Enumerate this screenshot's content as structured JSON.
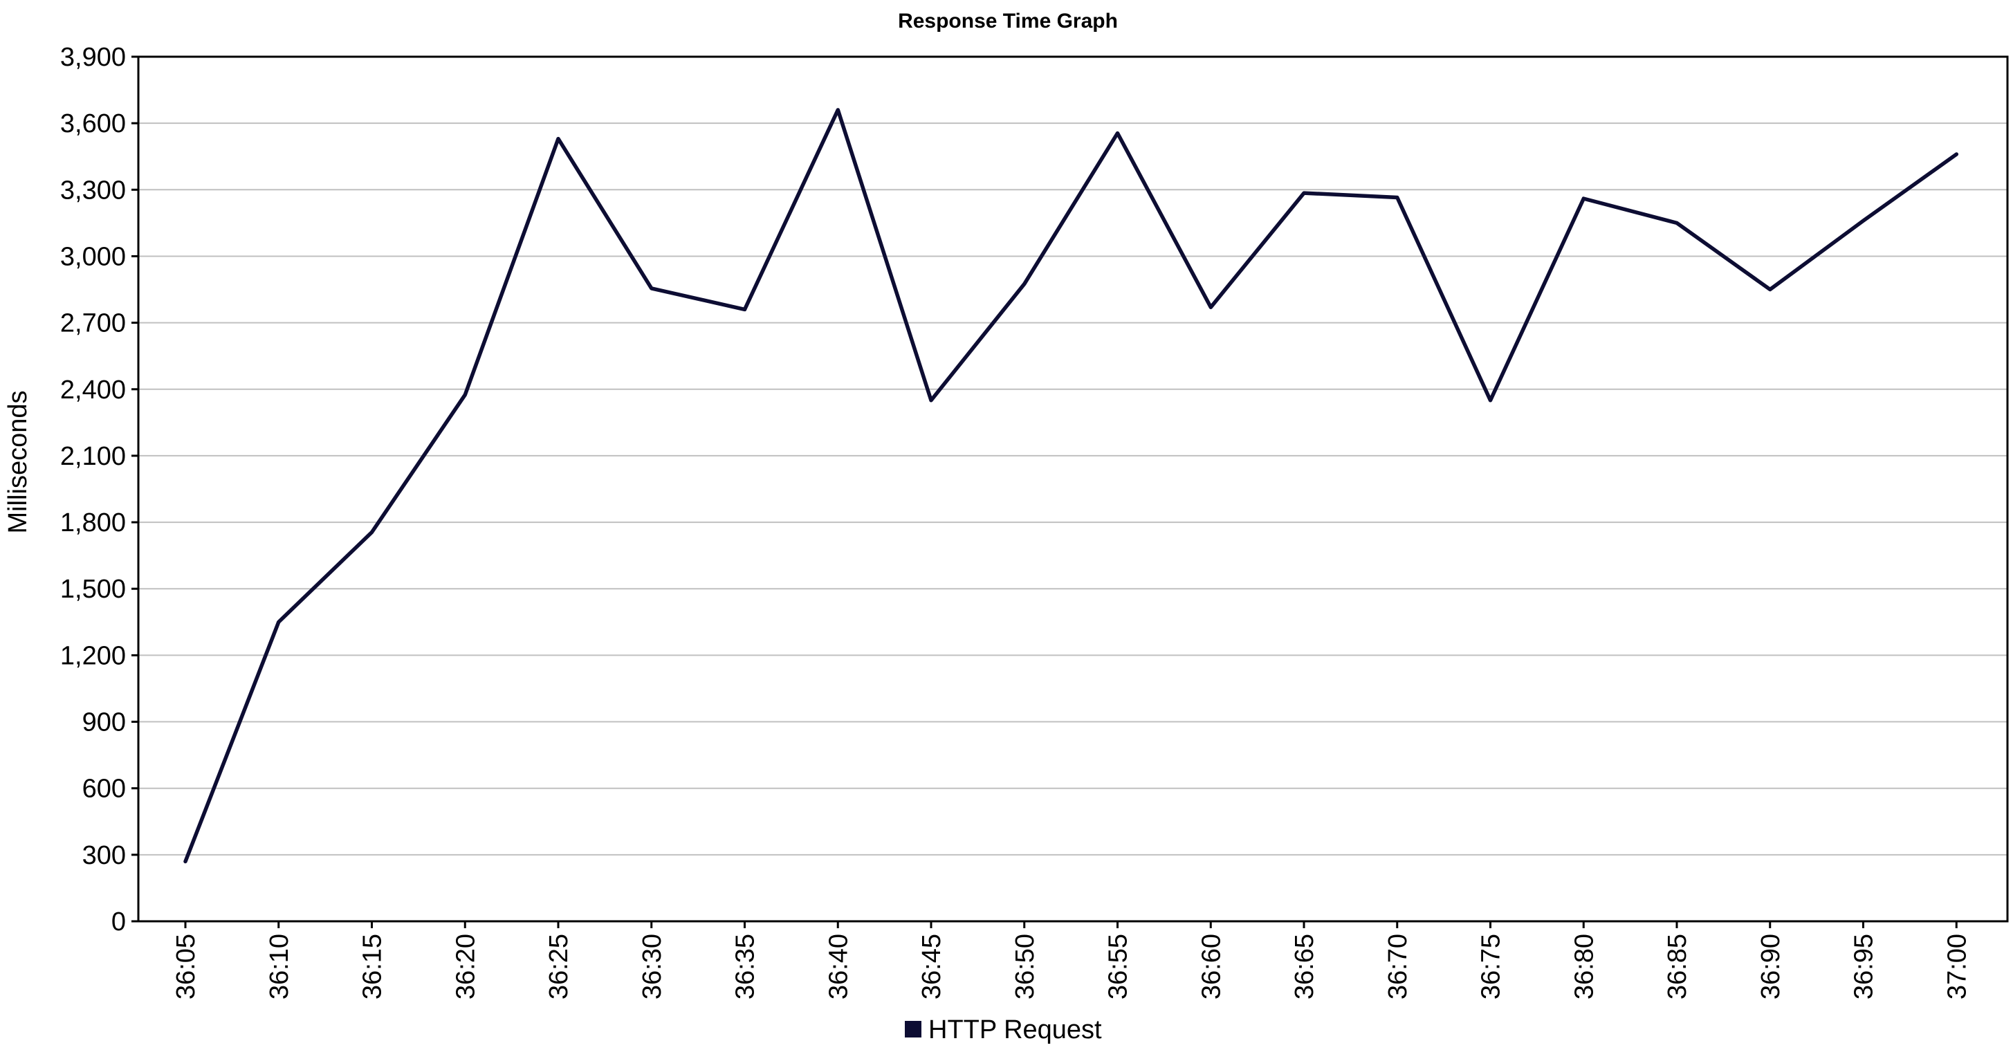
{
  "chart_data": {
    "type": "line",
    "title": "Response Time Graph",
    "xlabel": "",
    "ylabel": "Milliseconds",
    "ylim": [
      0,
      3900
    ],
    "yticks": [
      0,
      300,
      600,
      900,
      1200,
      1500,
      1800,
      2100,
      2400,
      2700,
      3000,
      3300,
      3600,
      3900
    ],
    "ytick_labels": [
      "0",
      "300",
      "600",
      "900",
      "1,200",
      "1,500",
      "1,800",
      "2,100",
      "2,400",
      "2,700",
      "3,000",
      "3,300",
      "3,600",
      "3,900"
    ],
    "categories": [
      "36:05",
      "36:10",
      "36:15",
      "36:20",
      "36:25",
      "36:30",
      "36:35",
      "36:40",
      "36:45",
      "36:50",
      "36:55",
      "36:60",
      "36:65",
      "36:70",
      "36:75",
      "36:80",
      "36:85",
      "36:90",
      "36:95",
      "37:00"
    ],
    "grid": true,
    "legend_position": "bottom",
    "series": [
      {
        "name": "HTTP Request",
        "color": "#0d0d33",
        "values": [
          270,
          1350,
          1755,
          2375,
          3530,
          2855,
          2760,
          3660,
          2350,
          2875,
          3555,
          2770,
          3285,
          3265,
          2350,
          3260,
          3150,
          2850,
          3160,
          3460
        ]
      }
    ]
  }
}
